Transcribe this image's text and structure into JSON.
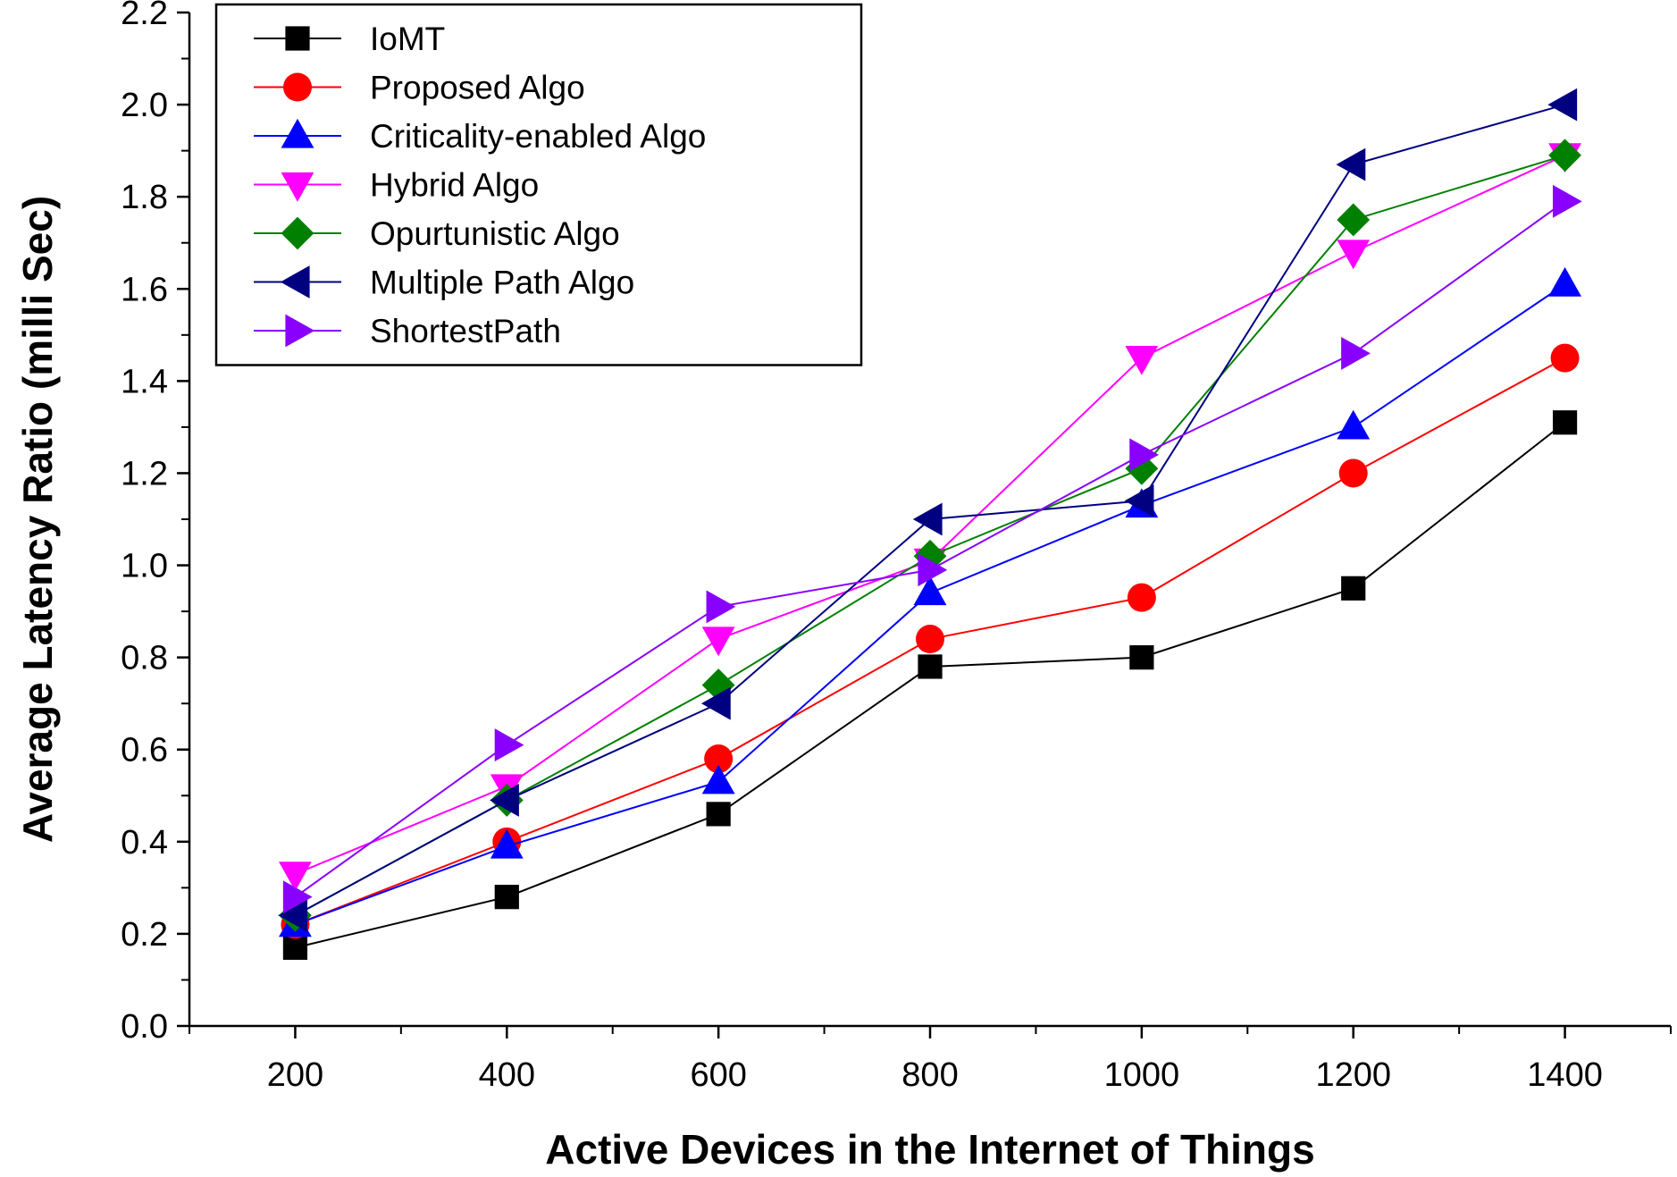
{
  "chart_data": {
    "type": "line",
    "title": "",
    "xlabel": "Active Devices in the Internet of Things",
    "ylabel": "Average Latency Ratio (milli Sec)",
    "xlim": [
      100,
      1500
    ],
    "ylim": [
      0.0,
      2.2
    ],
    "x_ticks": [
      "200",
      "400",
      "600",
      "800",
      "1000",
      "1200",
      "1400"
    ],
    "y_ticks": [
      "0.0",
      "0.2",
      "0.4",
      "0.6",
      "0.8",
      "1.0",
      "1.2",
      "1.4",
      "1.6",
      "1.8",
      "2.0",
      "2.2"
    ],
    "x": [
      200,
      400,
      600,
      800,
      1000,
      1200,
      1400
    ],
    "grid": false,
    "legend_position": "top-left",
    "series": [
      {
        "name": "IoMT",
        "color": "#000000",
        "marker": "square",
        "values": [
          0.17,
          0.28,
          0.46,
          0.78,
          0.8,
          0.95,
          1.31
        ]
      },
      {
        "name": "Proposed Algo",
        "color": "#ff0000",
        "marker": "circle",
        "values": [
          0.22,
          0.4,
          0.58,
          0.84,
          0.93,
          1.2,
          1.45
        ]
      },
      {
        "name": "Criticality-enabled Algo",
        "color": "#0000ff",
        "marker": "triangle-up",
        "values": [
          0.22,
          0.39,
          0.53,
          0.94,
          1.13,
          1.3,
          1.61
        ]
      },
      {
        "name": "Hybrid Algo",
        "color": "#ff00ff",
        "marker": "triangle-down",
        "values": [
          0.33,
          0.52,
          0.84,
          1.01,
          1.45,
          1.68,
          1.89
        ]
      },
      {
        "name": "Opurtunistic Algo",
        "color": "#008000",
        "marker": "diamond",
        "values": [
          0.24,
          0.49,
          0.74,
          1.02,
          1.21,
          1.75,
          1.89
        ]
      },
      {
        "name": "Multiple Path Algo",
        "color": "#000080",
        "marker": "triangle-left",
        "values": [
          0.24,
          0.49,
          0.7,
          1.1,
          1.14,
          1.87,
          2.0
        ]
      },
      {
        "name": "ShortestPath",
        "color": "#8a00ff",
        "marker": "triangle-right",
        "values": [
          0.28,
          0.61,
          0.91,
          0.99,
          1.24,
          1.46,
          1.79
        ]
      }
    ]
  }
}
